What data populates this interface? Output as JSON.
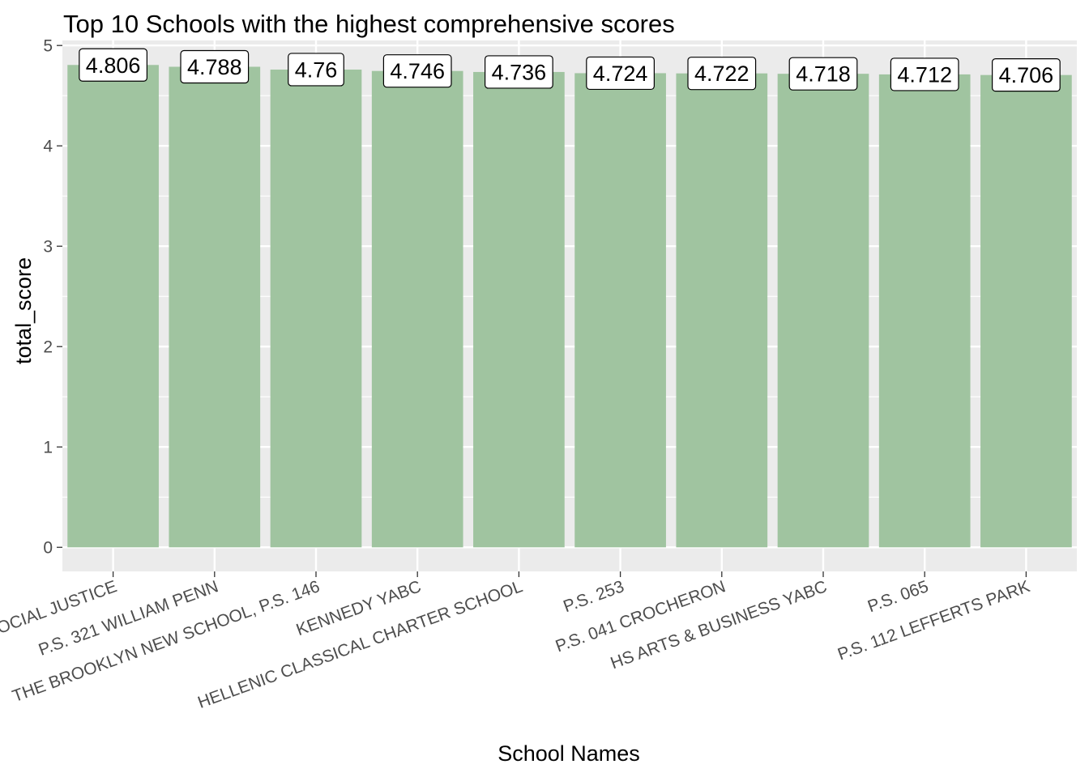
{
  "chart_data": {
    "type": "bar",
    "title": "Top 10 Schools with the highest comprehensive scores",
    "xlabel": "School Names",
    "ylabel": "total_score",
    "categories": [
      "SOCIAL JUSTICE",
      "P.S. 321 WILLIAM PENN",
      "THE BROOKLYN NEW SCHOOL, P.S. 146",
      "KENNEDY YABC",
      "HELLENIC CLASSICAL CHARTER SCHOOL",
      "P.S. 253",
      "P.S. 041 CROCHERON",
      "HS ARTS & BUSINESS YABC",
      "P.S. 065",
      "P.S. 112 LEFFERTS PARK"
    ],
    "values": [
      4.806,
      4.788,
      4.76,
      4.746,
      4.736,
      4.724,
      4.722,
      4.718,
      4.712,
      4.706
    ],
    "data_labels": [
      "4.806",
      "4.788",
      "4.76",
      "4.746",
      "4.736",
      "4.724",
      "4.722",
      "4.718",
      "4.712",
      "4.706"
    ],
    "yticks": [
      0,
      1,
      2,
      3,
      4,
      5
    ],
    "ylim": [
      -0.24,
      5.05
    ],
    "grid": true,
    "legend": "none",
    "colors": {
      "bar": "#A0C4A0",
      "panel": "#EBEBEB",
      "grid": "#FFFFFF",
      "tick_text": "#4D4D4D",
      "label_fill": "#FFFFFF",
      "label_border": "#000000"
    }
  }
}
